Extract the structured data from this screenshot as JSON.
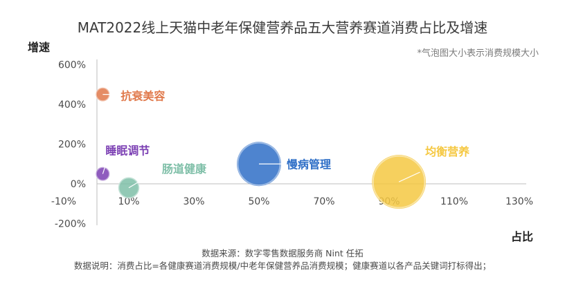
{
  "chart_data": {
    "type": "scatter",
    "title": "MAT2022线上天猫中老年保健营养品五大营养赛道消费占比及增速",
    "note": "*气泡图大小表示消费规模大小",
    "xlabel": "占比",
    "ylabel": "增速",
    "xlim": [
      -0.1,
      1.3
    ],
    "ylim": [
      -2.0,
      6.0
    ],
    "x_ticks": [
      "-10%",
      "10%",
      "30%",
      "50%",
      "70%",
      "90%",
      "110%",
      "130%"
    ],
    "y_ticks": [
      "-200%",
      "0%",
      "200%",
      "400%",
      "600%"
    ],
    "grid": false,
    "series": [
      {
        "name": "抗衰美容",
        "x": 0.02,
        "y": 4.5,
        "size": 0.02,
        "color": "#E0784A"
      },
      {
        "name": "睡眠调节",
        "x": 0.02,
        "y": 0.5,
        "size": 0.03,
        "color": "#7B3FB3"
      },
      {
        "name": "肠道健康",
        "x": 0.1,
        "y": -0.2,
        "size": 0.08,
        "color": "#7FBFA8"
      },
      {
        "name": "慢病管理",
        "x": 0.5,
        "y": 1.0,
        "size": 0.35,
        "color": "#2F6FC7"
      },
      {
        "name": "均衡营养",
        "x": 0.93,
        "y": 0.1,
        "size": 0.52,
        "color": "#F5C842"
      }
    ]
  },
  "footer": {
    "source": "数据来源：数字零售数据服务商 Nint 任拓",
    "note": "数据说明：消费占比=各健康赛道消费规模/中老年保健营养品消费规模；健康赛道以各产品关键词打标得出；"
  }
}
